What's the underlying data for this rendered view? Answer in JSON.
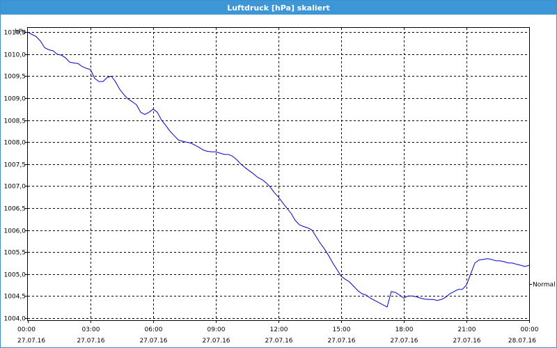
{
  "window": {
    "title": "Luftdruck [hPa] skaliert"
  },
  "chart_data": {
    "type": "line",
    "title": "Luftdruck [hPa] skaliert",
    "ylabel": "hPa",
    "xlabel": "",
    "ylim": [
      1003.95,
      1010.6
    ],
    "grid": true,
    "y_ticks": [
      "1004,0",
      "1004,5",
      "1005,0",
      "1005,5",
      "1006,0",
      "1006,5",
      "1007,0",
      "1007,5",
      "1008,0",
      "1008,5",
      "1009,0",
      "1009,5",
      "1010,0",
      "1010,5"
    ],
    "x_ticks": [
      {
        "time": "00:00",
        "date": "27.07.16"
      },
      {
        "time": "03:00",
        "date": "27.07.16"
      },
      {
        "time": "06:00",
        "date": "27.07.16"
      },
      {
        "time": "09:00",
        "date": "27.07.16"
      },
      {
        "time": "12:00",
        "date": "27.07.16"
      },
      {
        "time": "15:00",
        "date": "27.07.16"
      },
      {
        "time": "18:00",
        "date": "27.07.16"
      },
      {
        "time": "21:00",
        "date": "27.07.16"
      },
      {
        "time": "00:00",
        "date": "28.07.16"
      }
    ],
    "reference_line": {
      "label": "Normal",
      "value": 1004.78
    },
    "series": [
      {
        "color": "#0000cc",
        "x_hours": [
          0,
          0.2,
          0.4,
          0.6,
          0.8,
          1.0,
          1.2,
          1.4,
          1.6,
          1.8,
          2.0,
          2.2,
          2.4,
          2.6,
          2.8,
          3.0,
          3.2,
          3.4,
          3.6,
          3.8,
          4.0,
          4.2,
          4.4,
          4.6,
          4.8,
          5.0,
          5.2,
          5.4,
          5.6,
          5.8,
          6.0,
          6.2,
          6.4,
          6.6,
          6.8,
          7.0,
          7.2,
          7.4,
          7.6,
          7.8,
          8.0,
          8.2,
          8.4,
          8.6,
          8.8,
          9.0,
          9.2,
          9.4,
          9.6,
          9.8,
          10.0,
          10.2,
          10.4,
          10.6,
          10.8,
          11.0,
          11.2,
          11.4,
          11.6,
          11.8,
          12.0,
          12.2,
          12.4,
          12.6,
          12.8,
          13.0,
          13.2,
          13.4,
          13.6,
          13.8,
          14.0,
          14.2,
          14.4,
          14.6,
          14.8,
          15.0,
          15.2,
          15.4,
          15.6,
          15.8,
          16.0,
          16.2,
          16.4,
          16.6,
          16.8,
          17.0,
          17.2,
          17.4,
          17.6,
          17.8,
          18.0,
          18.2,
          18.4,
          18.6,
          18.8,
          19.0,
          19.2,
          19.4,
          19.6,
          19.8,
          20.0,
          20.2,
          20.4,
          20.6,
          20.8,
          21.0,
          21.2,
          21.4,
          21.6,
          21.8,
          22.0,
          22.2,
          22.4,
          22.6,
          22.8,
          23.0,
          23.2,
          23.4,
          23.6,
          23.8,
          24.0
        ],
        "values": [
          1010.5,
          1010.45,
          1010.4,
          1010.3,
          1010.15,
          1010.1,
          1010.08,
          1010.0,
          1009.98,
          1009.92,
          1009.82,
          1009.8,
          1009.79,
          1009.72,
          1009.68,
          1009.65,
          1009.45,
          1009.38,
          1009.38,
          1009.47,
          1009.5,
          1009.37,
          1009.2,
          1009.08,
          1008.98,
          1008.92,
          1008.85,
          1008.68,
          1008.63,
          1008.68,
          1008.75,
          1008.68,
          1008.5,
          1008.38,
          1008.25,
          1008.15,
          1008.05,
          1008.02,
          1008.0,
          1007.98,
          1007.93,
          1007.88,
          1007.82,
          1007.79,
          1007.78,
          1007.78,
          1007.75,
          1007.72,
          1007.72,
          1007.68,
          1007.6,
          1007.5,
          1007.42,
          1007.35,
          1007.28,
          1007.2,
          1007.15,
          1007.08,
          1006.98,
          1006.85,
          1006.75,
          1006.62,
          1006.5,
          1006.38,
          1006.22,
          1006.12,
          1006.08,
          1006.05,
          1006.0,
          1005.85,
          1005.7,
          1005.57,
          1005.42,
          1005.25,
          1005.1,
          1004.95,
          1004.88,
          1004.82,
          1004.72,
          1004.62,
          1004.55,
          1004.52,
          1004.45,
          1004.4,
          1004.35,
          1004.3,
          1004.25,
          1004.6,
          1004.58,
          1004.52,
          1004.45,
          1004.5,
          1004.5,
          1004.48,
          1004.45,
          1004.43,
          1004.42,
          1004.42,
          1004.4,
          1004.42,
          1004.47,
          1004.55,
          1004.6,
          1004.65,
          1004.65,
          1004.75,
          1005.0,
          1005.25,
          1005.32,
          1005.33,
          1005.35,
          1005.33,
          1005.3,
          1005.3,
          1005.28,
          1005.25,
          1005.25,
          1005.22,
          1005.2,
          1005.17,
          1005.2
        ]
      }
    ]
  }
}
